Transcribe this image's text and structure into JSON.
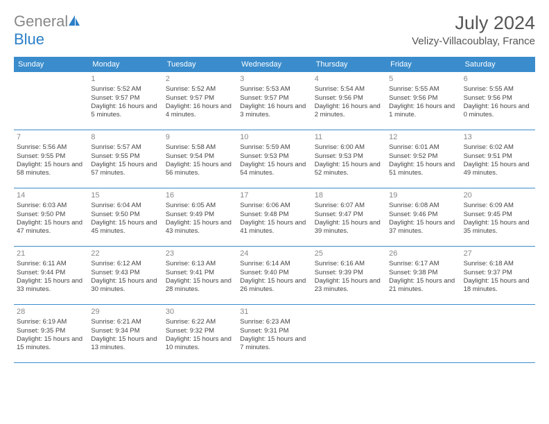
{
  "header": {
    "logo_general": "General",
    "logo_blue": "Blue",
    "month_title": "July 2024",
    "location": "Velizy-Villacoublay, France"
  },
  "styling": {
    "header_bg": "#3a8ccc",
    "header_text": "#ffffff",
    "border_color": "#3a8ccc",
    "body_bg": "#ffffff",
    "text_color": "#444444",
    "daynum_color": "#888888",
    "title_color": "#555555",
    "logo_gray": "#888888",
    "logo_blue": "#2b7fc7",
    "weekday_fontsize": 11,
    "cell_fontsize": 9.5,
    "title_fontsize": 27,
    "location_fontsize": 15
  },
  "weekdays": [
    "Sunday",
    "Monday",
    "Tuesday",
    "Wednesday",
    "Thursday",
    "Friday",
    "Saturday"
  ],
  "start_offset": 1,
  "days": [
    {
      "n": 1,
      "sunrise": "Sunrise: 5:52 AM",
      "sunset": "Sunset: 9:57 PM",
      "daylight": "Daylight: 16 hours and 5 minutes."
    },
    {
      "n": 2,
      "sunrise": "Sunrise: 5:52 AM",
      "sunset": "Sunset: 9:57 PM",
      "daylight": "Daylight: 16 hours and 4 minutes."
    },
    {
      "n": 3,
      "sunrise": "Sunrise: 5:53 AM",
      "sunset": "Sunset: 9:57 PM",
      "daylight": "Daylight: 16 hours and 3 minutes."
    },
    {
      "n": 4,
      "sunrise": "Sunrise: 5:54 AM",
      "sunset": "Sunset: 9:56 PM",
      "daylight": "Daylight: 16 hours and 2 minutes."
    },
    {
      "n": 5,
      "sunrise": "Sunrise: 5:55 AM",
      "sunset": "Sunset: 9:56 PM",
      "daylight": "Daylight: 16 hours and 1 minute."
    },
    {
      "n": 6,
      "sunrise": "Sunrise: 5:55 AM",
      "sunset": "Sunset: 9:56 PM",
      "daylight": "Daylight: 16 hours and 0 minutes."
    },
    {
      "n": 7,
      "sunrise": "Sunrise: 5:56 AM",
      "sunset": "Sunset: 9:55 PM",
      "daylight": "Daylight: 15 hours and 58 minutes."
    },
    {
      "n": 8,
      "sunrise": "Sunrise: 5:57 AM",
      "sunset": "Sunset: 9:55 PM",
      "daylight": "Daylight: 15 hours and 57 minutes."
    },
    {
      "n": 9,
      "sunrise": "Sunrise: 5:58 AM",
      "sunset": "Sunset: 9:54 PM",
      "daylight": "Daylight: 15 hours and 56 minutes."
    },
    {
      "n": 10,
      "sunrise": "Sunrise: 5:59 AM",
      "sunset": "Sunset: 9:53 PM",
      "daylight": "Daylight: 15 hours and 54 minutes."
    },
    {
      "n": 11,
      "sunrise": "Sunrise: 6:00 AM",
      "sunset": "Sunset: 9:53 PM",
      "daylight": "Daylight: 15 hours and 52 minutes."
    },
    {
      "n": 12,
      "sunrise": "Sunrise: 6:01 AM",
      "sunset": "Sunset: 9:52 PM",
      "daylight": "Daylight: 15 hours and 51 minutes."
    },
    {
      "n": 13,
      "sunrise": "Sunrise: 6:02 AM",
      "sunset": "Sunset: 9:51 PM",
      "daylight": "Daylight: 15 hours and 49 minutes."
    },
    {
      "n": 14,
      "sunrise": "Sunrise: 6:03 AM",
      "sunset": "Sunset: 9:50 PM",
      "daylight": "Daylight: 15 hours and 47 minutes."
    },
    {
      "n": 15,
      "sunrise": "Sunrise: 6:04 AM",
      "sunset": "Sunset: 9:50 PM",
      "daylight": "Daylight: 15 hours and 45 minutes."
    },
    {
      "n": 16,
      "sunrise": "Sunrise: 6:05 AM",
      "sunset": "Sunset: 9:49 PM",
      "daylight": "Daylight: 15 hours and 43 minutes."
    },
    {
      "n": 17,
      "sunrise": "Sunrise: 6:06 AM",
      "sunset": "Sunset: 9:48 PM",
      "daylight": "Daylight: 15 hours and 41 minutes."
    },
    {
      "n": 18,
      "sunrise": "Sunrise: 6:07 AM",
      "sunset": "Sunset: 9:47 PM",
      "daylight": "Daylight: 15 hours and 39 minutes."
    },
    {
      "n": 19,
      "sunrise": "Sunrise: 6:08 AM",
      "sunset": "Sunset: 9:46 PM",
      "daylight": "Daylight: 15 hours and 37 minutes."
    },
    {
      "n": 20,
      "sunrise": "Sunrise: 6:09 AM",
      "sunset": "Sunset: 9:45 PM",
      "daylight": "Daylight: 15 hours and 35 minutes."
    },
    {
      "n": 21,
      "sunrise": "Sunrise: 6:11 AM",
      "sunset": "Sunset: 9:44 PM",
      "daylight": "Daylight: 15 hours and 33 minutes."
    },
    {
      "n": 22,
      "sunrise": "Sunrise: 6:12 AM",
      "sunset": "Sunset: 9:43 PM",
      "daylight": "Daylight: 15 hours and 30 minutes."
    },
    {
      "n": 23,
      "sunrise": "Sunrise: 6:13 AM",
      "sunset": "Sunset: 9:41 PM",
      "daylight": "Daylight: 15 hours and 28 minutes."
    },
    {
      "n": 24,
      "sunrise": "Sunrise: 6:14 AM",
      "sunset": "Sunset: 9:40 PM",
      "daylight": "Daylight: 15 hours and 26 minutes."
    },
    {
      "n": 25,
      "sunrise": "Sunrise: 6:16 AM",
      "sunset": "Sunset: 9:39 PM",
      "daylight": "Daylight: 15 hours and 23 minutes."
    },
    {
      "n": 26,
      "sunrise": "Sunrise: 6:17 AM",
      "sunset": "Sunset: 9:38 PM",
      "daylight": "Daylight: 15 hours and 21 minutes."
    },
    {
      "n": 27,
      "sunrise": "Sunrise: 6:18 AM",
      "sunset": "Sunset: 9:37 PM",
      "daylight": "Daylight: 15 hours and 18 minutes."
    },
    {
      "n": 28,
      "sunrise": "Sunrise: 6:19 AM",
      "sunset": "Sunset: 9:35 PM",
      "daylight": "Daylight: 15 hours and 15 minutes."
    },
    {
      "n": 29,
      "sunrise": "Sunrise: 6:21 AM",
      "sunset": "Sunset: 9:34 PM",
      "daylight": "Daylight: 15 hours and 13 minutes."
    },
    {
      "n": 30,
      "sunrise": "Sunrise: 6:22 AM",
      "sunset": "Sunset: 9:32 PM",
      "daylight": "Daylight: 15 hours and 10 minutes."
    },
    {
      "n": 31,
      "sunrise": "Sunrise: 6:23 AM",
      "sunset": "Sunset: 9:31 PM",
      "daylight": "Daylight: 15 hours and 7 minutes."
    }
  ]
}
